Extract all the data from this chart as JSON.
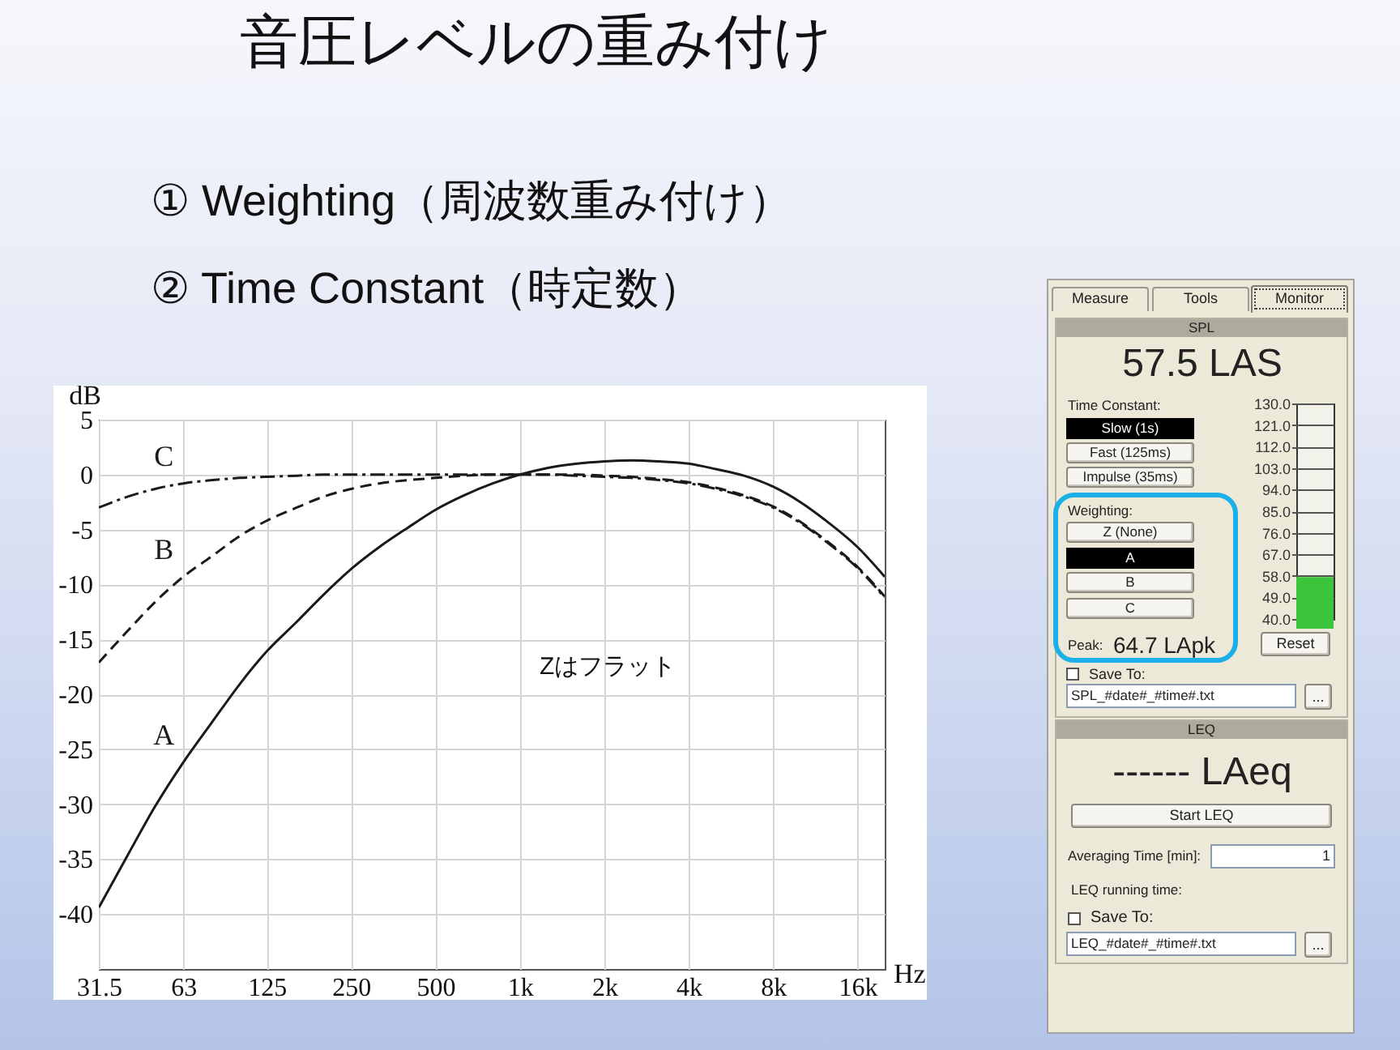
{
  "chart_data": [
    {
      "type": "line",
      "title": "音圧レベルの重み付け",
      "xlabel": "Hz",
      "ylabel": "dB",
      "log": "x",
      "x": [
        31.5,
        40,
        50,
        63,
        80,
        100,
        125,
        160,
        200,
        250,
        315,
        400,
        500,
        630,
        800,
        1000,
        1250,
        1600,
        2000,
        2500,
        3150,
        4000,
        5000,
        6300,
        8000,
        10000,
        12500,
        16000,
        20000
      ],
      "series": [
        {
          "name": "A",
          "color": "#1a1a1a",
          "line_style": "solid",
          "values": [
            -39.4,
            -34.6,
            -30.2,
            -26.2,
            -22.5,
            -19.1,
            -16.1,
            -13.4,
            -10.9,
            -8.6,
            -6.6,
            -4.8,
            -3.2,
            -1.9,
            -0.8,
            0,
            0.6,
            1.0,
            1.2,
            1.3,
            1.2,
            1.0,
            0.5,
            -0.1,
            -1.1,
            -2.5,
            -4.3,
            -6.6,
            -9.3
          ]
        },
        {
          "name": "B",
          "color": "#1a1a1a",
          "line_style": "dashed",
          "values": [
            -17.1,
            -14.2,
            -11.6,
            -9.3,
            -7.4,
            -5.6,
            -4.2,
            -3.0,
            -2.0,
            -1.3,
            -0.8,
            -0.5,
            -0.3,
            -0.1,
            0,
            0,
            0,
            0,
            -0.1,
            -0.2,
            -0.4,
            -0.7,
            -1.2,
            -1.9,
            -2.9,
            -4.3,
            -6.1,
            -8.4,
            -11.1
          ]
        },
        {
          "name": "C",
          "color": "#1a1a1a",
          "line_style": "dashdot",
          "values": [
            -3.0,
            -2.0,
            -1.3,
            -0.8,
            -0.5,
            -0.3,
            -0.2,
            -0.1,
            0,
            0,
            0,
            0,
            0,
            0,
            0,
            0,
            0,
            -0.1,
            -0.2,
            -0.3,
            -0.5,
            -0.8,
            -1.3,
            -2.0,
            -3.0,
            -4.4,
            -6.2,
            -8.5,
            -11.2
          ]
        }
      ],
      "xlim": [
        31.5,
        20000
      ],
      "xticks": [
        31.5,
        63,
        125,
        250,
        500,
        {
          "value": 1000,
          "label": "1k"
        },
        {
          "value": 2000,
          "label": "2k"
        },
        {
          "value": 4000,
          "label": "4k"
        },
        {
          "value": 8000,
          "label": "8k"
        },
        {
          "value": 16000,
          "label": "16k"
        }
      ],
      "ylim": [
        -45,
        5
      ],
      "yticks": [
        5,
        0,
        -5,
        -10,
        -15,
        -20,
        -25,
        -30,
        -35,
        -40
      ],
      "grid": true,
      "annotations": [
        "① Weighting（周波数重み付け）",
        "② Time Constant（時定数）",
        "Zはフラット"
      ]
    },
    {
      "type": "bar",
      "title": "SPL",
      "categories": [
        null
      ],
      "values": [
        57.5
      ],
      "color": "#3cc43c",
      "ylim": [
        40,
        130
      ],
      "yticks": [
        {
          "value": 130,
          "label": "130.0"
        },
        {
          "value": 121,
          "label": "121.0"
        },
        {
          "value": 112,
          "label": "112.0"
        },
        {
          "value": 103,
          "label": "103.0"
        },
        {
          "value": 94,
          "label": "94.0"
        },
        {
          "value": 85,
          "label": "85.0"
        },
        {
          "value": 76,
          "label": "76.0"
        },
        {
          "value": 67,
          "label": "67.0"
        },
        {
          "value": 58,
          "label": "58.0"
        },
        {
          "value": 49,
          "label": "49.0"
        },
        {
          "value": 40,
          "label": "40.0"
        }
      ],
      "grid": "y",
      "annotations": [
        "Measure",
        "Tools",
        "Monitor",
        "57.5 LAS",
        "Time Constant:",
        "Slow (1s)",
        "Fast (125ms)",
        "Impulse (35ms)",
        "Weighting:",
        "Z (None)",
        "A",
        "B",
        "C",
        "Peak:",
        "64.7 LApk",
        "Reset",
        "Save To:",
        "SPL_#date#_#time#.txt",
        "...",
        "LEQ",
        "------ LAeq",
        "Start LEQ",
        "Averaging Time [min]:",
        "1",
        "LEQ running time:",
        "Save To:",
        "LEQ_#date#_#time#.txt",
        "..."
      ]
    }
  ]
}
